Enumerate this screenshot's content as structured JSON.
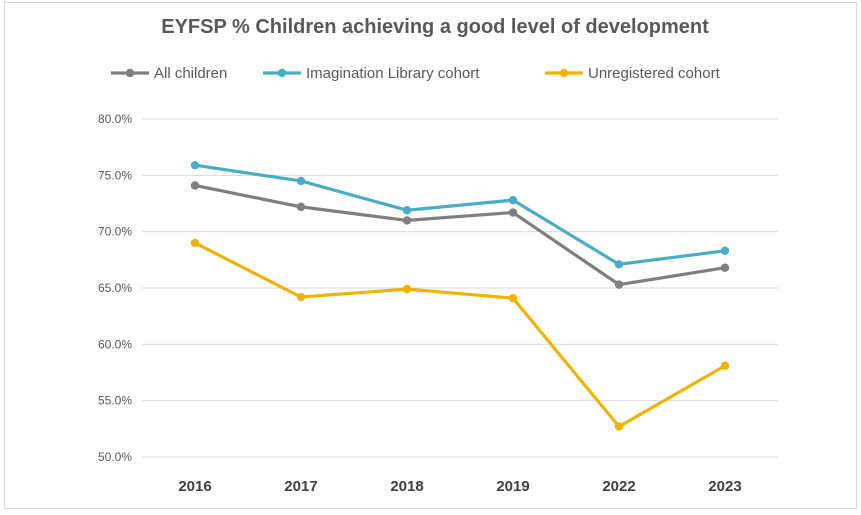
{
  "chart_data": {
    "type": "line",
    "title": "EYFSP % Children achieving a good level of development",
    "categories": [
      "2016",
      "2017",
      "2018",
      "2019",
      "2022",
      "2023"
    ],
    "y_ticks": [
      "50.0%",
      "55.0%",
      "60.0%",
      "65.0%",
      "70.0%",
      "75.0%",
      "80.0%"
    ],
    "ylim": [
      50,
      80
    ],
    "grid": true,
    "legend_position": "top",
    "series": [
      {
        "name": "All children",
        "color": "#7f7f7f",
        "values": [
          74.1,
          72.2,
          71.0,
          71.7,
          65.3,
          66.8
        ]
      },
      {
        "name": "Imagination Library cohort",
        "color": "#4bacc6",
        "values": [
          75.9,
          74.5,
          71.9,
          72.8,
          67.1,
          68.3
        ]
      },
      {
        "name": "Unregistered cohort",
        "color": "#f0b400",
        "values": [
          69.0,
          64.2,
          64.9,
          64.1,
          52.7,
          58.1
        ]
      }
    ]
  }
}
